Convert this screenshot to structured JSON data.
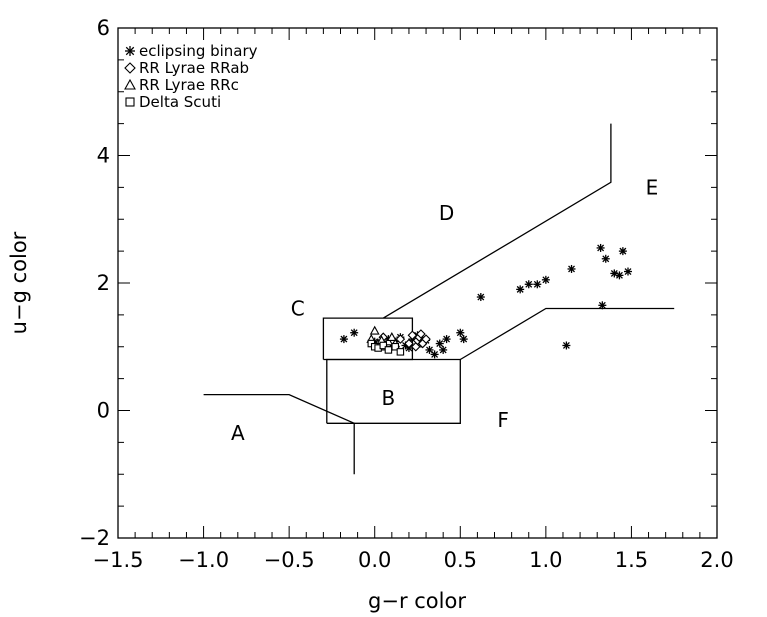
{
  "chart_data": {
    "type": "scatter",
    "title": "",
    "xlabel": "g−r color",
    "ylabel": "u−g color",
    "xlim": [
      -1.5,
      2.0
    ],
    "ylim": [
      -2,
      6
    ],
    "x_ticks": [
      {
        "value": -1.5,
        "label": "−1.5"
      },
      {
        "value": -1.0,
        "label": "−1.0"
      },
      {
        "value": -0.5,
        "label": "−0.5"
      },
      {
        "value": 0.0,
        "label": "0.0"
      },
      {
        "value": 0.5,
        "label": "0.5"
      },
      {
        "value": 1.0,
        "label": "1.0"
      },
      {
        "value": 1.5,
        "label": "1.5"
      },
      {
        "value": 2.0,
        "label": "2.0"
      }
    ],
    "y_ticks": [
      {
        "value": -2,
        "label": "−2"
      },
      {
        "value": 0,
        "label": "0"
      },
      {
        "value": 2,
        "label": "2"
      },
      {
        "value": 4,
        "label": "4"
      },
      {
        "value": 6,
        "label": "6"
      }
    ],
    "legend_position": "top-left",
    "series": [
      {
        "name": "eclipsing binary",
        "marker": "asterisk",
        "points": [
          [
            -0.12,
            1.22
          ],
          [
            -0.18,
            1.12
          ],
          [
            0.0,
            1.08
          ],
          [
            0.05,
            1.05
          ],
          [
            0.08,
            1.12
          ],
          [
            0.1,
            1.0
          ],
          [
            0.12,
            1.08
          ],
          [
            0.15,
            1.15
          ],
          [
            0.18,
            1.02
          ],
          [
            0.2,
            0.98
          ],
          [
            0.22,
            1.12
          ],
          [
            0.25,
            1.18
          ],
          [
            0.27,
            1.05
          ],
          [
            0.3,
            1.1
          ],
          [
            0.32,
            0.95
          ],
          [
            0.35,
            0.88
          ],
          [
            0.38,
            1.05
          ],
          [
            0.4,
            0.95
          ],
          [
            0.42,
            1.12
          ],
          [
            0.5,
            1.22
          ],
          [
            0.52,
            1.12
          ],
          [
            0.62,
            1.78
          ],
          [
            0.85,
            1.9
          ],
          [
            0.9,
            1.98
          ],
          [
            0.95,
            1.98
          ],
          [
            1.0,
            2.05
          ],
          [
            1.12,
            1.02
          ],
          [
            1.15,
            2.22
          ],
          [
            1.32,
            2.55
          ],
          [
            1.33,
            1.65
          ],
          [
            1.35,
            2.38
          ],
          [
            1.4,
            2.15
          ],
          [
            1.43,
            2.12
          ],
          [
            1.45,
            2.5
          ],
          [
            1.48,
            2.18
          ]
        ]
      },
      {
        "name": "RR Lyrae RRab",
        "marker": "diamond",
        "points": [
          [
            0.05,
            1.15
          ],
          [
            0.1,
            1.1
          ],
          [
            0.15,
            1.12
          ],
          [
            0.2,
            1.05
          ],
          [
            0.22,
            1.18
          ],
          [
            0.24,
            1.0
          ],
          [
            0.25,
            1.1
          ],
          [
            0.26,
            1.15
          ],
          [
            0.27,
            1.2
          ],
          [
            0.28,
            1.05
          ],
          [
            0.3,
            1.12
          ]
        ]
      },
      {
        "name": "RR Lyrae RRc",
        "marker": "triangle",
        "points": [
          [
            -0.02,
            1.12
          ],
          [
            0.0,
            1.25
          ],
          [
            0.02,
            1.05
          ],
          [
            0.04,
            1.1
          ],
          [
            0.06,
            1.0
          ],
          [
            0.08,
            1.08
          ],
          [
            0.1,
            1.15
          ],
          [
            0.12,
            1.05
          ]
        ]
      },
      {
        "name": "Delta Scuti",
        "marker": "square",
        "points": [
          [
            -0.02,
            1.05
          ],
          [
            0.0,
            1.0
          ],
          [
            0.02,
            0.98
          ],
          [
            0.05,
            1.02
          ],
          [
            0.08,
            0.95
          ],
          [
            0.12,
            1.0
          ],
          [
            0.15,
            0.92
          ]
        ]
      }
    ],
    "region_lines": [
      {
        "name": "region-A-boundary",
        "points": [
          [
            -1.0,
            0.25
          ],
          [
            -0.5,
            0.25
          ],
          [
            -0.12,
            -0.2
          ],
          [
            -0.12,
            -1.0
          ]
        ]
      },
      {
        "name": "region-C-box",
        "points": [
          [
            -0.3,
            0.8
          ],
          [
            0.22,
            0.8
          ],
          [
            0.22,
            1.45
          ],
          [
            -0.3,
            1.45
          ],
          [
            -0.3,
            0.8
          ]
        ]
      },
      {
        "name": "region-B-box",
        "points": [
          [
            -0.28,
            -0.2
          ],
          [
            0.5,
            -0.2
          ],
          [
            0.5,
            0.8
          ],
          [
            -0.28,
            0.8
          ],
          [
            -0.28,
            -0.2
          ]
        ]
      },
      {
        "name": "region-D-E-boundary",
        "points": [
          [
            0.05,
            1.45
          ],
          [
            1.38,
            3.58
          ],
          [
            1.38,
            4.5
          ]
        ]
      },
      {
        "name": "region-E-F-boundary",
        "points": [
          [
            0.5,
            0.8
          ],
          [
            1.0,
            1.6
          ],
          [
            1.75,
            1.6
          ]
        ]
      }
    ],
    "region_labels": [
      {
        "text": "A",
        "x": -0.8,
        "y": -0.35
      },
      {
        "text": "B",
        "x": 0.08,
        "y": 0.2
      },
      {
        "text": "C",
        "x": -0.45,
        "y": 1.6
      },
      {
        "text": "D",
        "x": 0.42,
        "y": 3.1
      },
      {
        "text": "E",
        "x": 1.62,
        "y": 3.5
      },
      {
        "text": "F",
        "x": 0.75,
        "y": -0.15
      }
    ]
  }
}
